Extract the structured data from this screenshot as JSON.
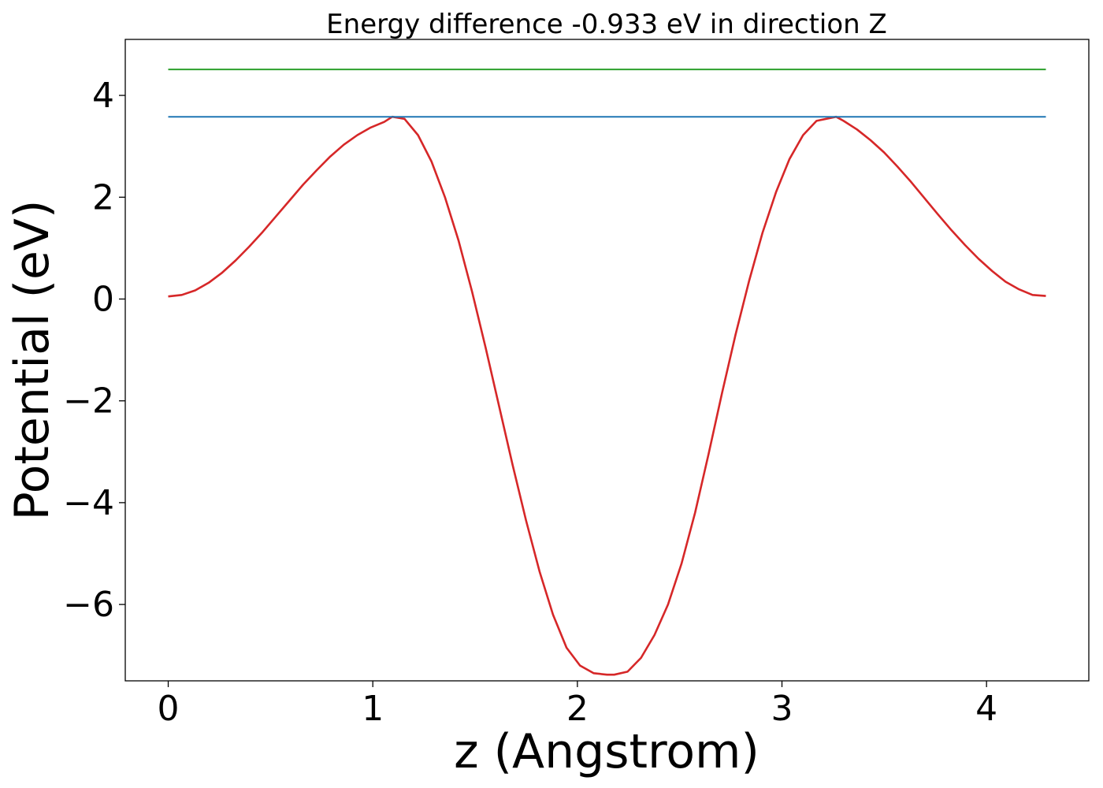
{
  "chart_data": {
    "type": "line",
    "title": "Energy difference -0.933 eV in direction Z",
    "xlabel": "z (Angstrom)",
    "ylabel": "Potential (eV)",
    "xlim": [
      -0.21,
      4.5
    ],
    "ylim": [
      -7.5,
      5.1
    ],
    "grid": false,
    "xticks": [
      0,
      1,
      2,
      3,
      4
    ],
    "xtick_labels": [
      "0",
      "1",
      "2",
      "3",
      "4"
    ],
    "yticks": [
      4,
      2,
      0,
      -2,
      -4,
      -6
    ],
    "ytick_labels": [
      "4",
      "2",
      "0",
      "−2",
      "−4",
      "−6"
    ],
    "series": [
      {
        "color": "#d62728",
        "x": [
          0.0,
          0.066,
          0.132,
          0.198,
          0.264,
          0.33,
          0.396,
          0.462,
          0.528,
          0.594,
          0.66,
          0.726,
          0.792,
          0.858,
          0.924,
          0.99,
          1.056,
          1.095,
          1.155,
          1.221,
          1.287,
          1.353,
          1.419,
          1.485,
          1.551,
          1.617,
          1.683,
          1.749,
          1.815,
          1.881,
          1.947,
          2.013,
          2.079,
          2.145,
          2.18,
          2.245,
          2.311,
          2.377,
          2.443,
          2.509,
          2.575,
          2.641,
          2.707,
          2.773,
          2.839,
          2.905,
          2.971,
          3.037,
          3.103,
          3.169,
          3.265,
          3.301,
          3.367,
          3.433,
          3.499,
          3.565,
          3.631,
          3.697,
          3.763,
          3.829,
          3.895,
          3.961,
          4.027,
          4.093,
          4.159,
          4.225,
          4.29
        ],
        "values": [
          0.05,
          0.08,
          0.17,
          0.32,
          0.52,
          0.76,
          1.03,
          1.32,
          1.63,
          1.94,
          2.25,
          2.53,
          2.8,
          3.03,
          3.22,
          3.37,
          3.48,
          3.58,
          3.54,
          3.22,
          2.7,
          2.0,
          1.15,
          0.15,
          -0.95,
          -2.1,
          -3.25,
          -4.35,
          -5.35,
          -6.2,
          -6.85,
          -7.2,
          -7.35,
          -7.38,
          -7.38,
          -7.32,
          -7.05,
          -6.6,
          -6.0,
          -5.2,
          -4.2,
          -3.05,
          -1.85,
          -0.7,
          0.35,
          1.3,
          2.1,
          2.75,
          3.22,
          3.5,
          3.58,
          3.5,
          3.33,
          3.12,
          2.88,
          2.6,
          2.3,
          1.98,
          1.66,
          1.35,
          1.06,
          0.79,
          0.55,
          0.34,
          0.19,
          0.08,
          0.06
        ]
      },
      {
        "color": "#1f77b4",
        "x": [
          0.0,
          4.29
        ],
        "values": [
          3.58,
          3.58
        ]
      },
      {
        "color": "#2ca02c",
        "x": [
          0.0,
          4.29
        ],
        "values": [
          4.51,
          4.51
        ]
      }
    ]
  }
}
